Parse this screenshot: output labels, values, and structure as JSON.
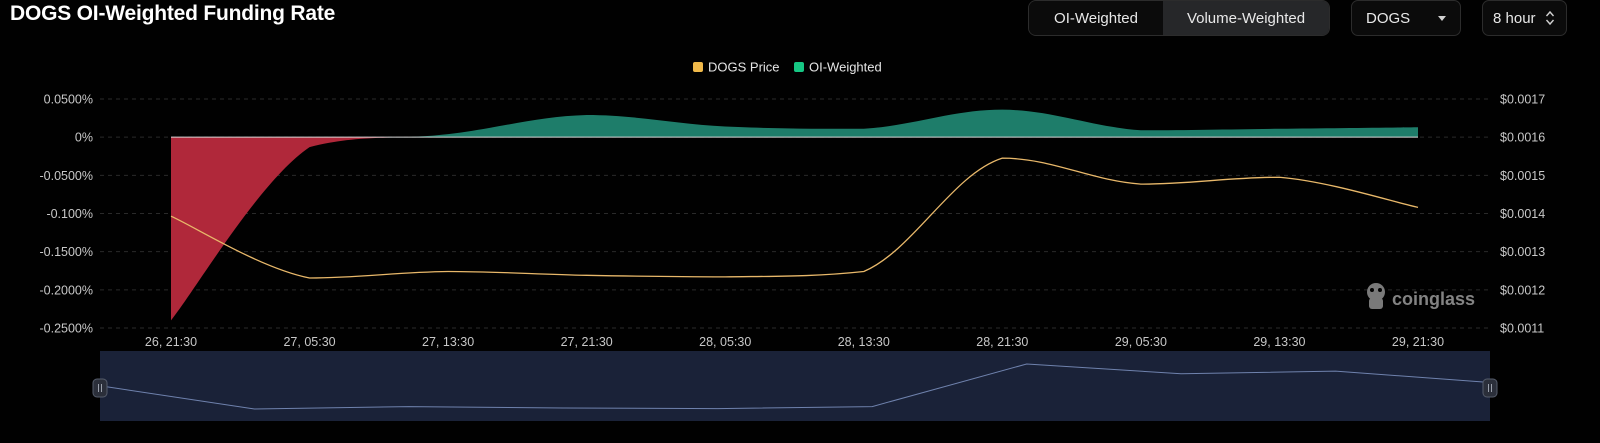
{
  "header": {
    "title": "DOGS OI-Weighted Funding Rate",
    "tabs": [
      {
        "label": "OI-Weighted",
        "active": true
      },
      {
        "label": "Volume-Weighted",
        "active": false
      }
    ],
    "coin_select": {
      "value": "DOGS"
    },
    "interval_select": {
      "value": "8 hour"
    }
  },
  "watermark": {
    "text": "coinglass"
  },
  "colors": {
    "price_line": "#e8b86a",
    "positive_fill": "#1e7d6a",
    "negative_fill": "#b0283a",
    "legend_price": "#f0b94a",
    "legend_oi": "#16c784"
  },
  "chart_data": {
    "type": "area",
    "legend": [
      {
        "name": "DOGS Price",
        "color": "#f0b94a"
      },
      {
        "name": "OI-Weighted",
        "color": "#16c784"
      }
    ],
    "x": [
      "26, 21:30",
      "27, 05:30",
      "27, 13:30",
      "27, 21:30",
      "28, 05:30",
      "28, 13:30",
      "28, 21:30",
      "29, 05:30",
      "29, 13:30",
      "29, 21:30"
    ],
    "series": [
      {
        "name": "OI-Weighted",
        "axis": "left",
        "unit": "%",
        "values": [
          -0.24,
          -0.013,
          0.004,
          0.029,
          0.014,
          0.011,
          0.036,
          0.009,
          0.011,
          0.013
        ]
      },
      {
        "name": "DOGS Price",
        "axis": "right",
        "unit": "$",
        "values": [
          0.001393,
          0.001231,
          0.001248,
          0.001238,
          0.001234,
          0.001248,
          0.001545,
          0.001477,
          0.001495,
          0.001416
        ]
      }
    ],
    "y_left": {
      "ticks": [
        "0.0500%",
        "0%",
        "-0.0500%",
        "-0.100%",
        "-0.1500%",
        "-0.2000%",
        "-0.2500%"
      ],
      "tick_values": [
        0.05,
        0,
        -0.05,
        -0.1,
        -0.15,
        -0.2,
        -0.25
      ],
      "range": [
        -0.25,
        0.05
      ]
    },
    "y_right": {
      "ticks": [
        "$0.0017",
        "$0.0016",
        "$0.0015",
        "$0.0014",
        "$0.0013",
        "$0.0012",
        "$0.0011"
      ],
      "tick_values": [
        0.0017,
        0.0016,
        0.0015,
        0.0014,
        0.0013,
        0.0012,
        0.0011
      ],
      "range": [
        0.0011,
        0.0017
      ]
    },
    "grid": true,
    "legend_position": "top-center"
  },
  "navigator": {
    "values": [
      0.001393,
      0.001231,
      0.001248,
      0.001238,
      0.001234,
      0.001248,
      0.001545,
      0.001477,
      0.001495,
      0.001416
    ]
  }
}
